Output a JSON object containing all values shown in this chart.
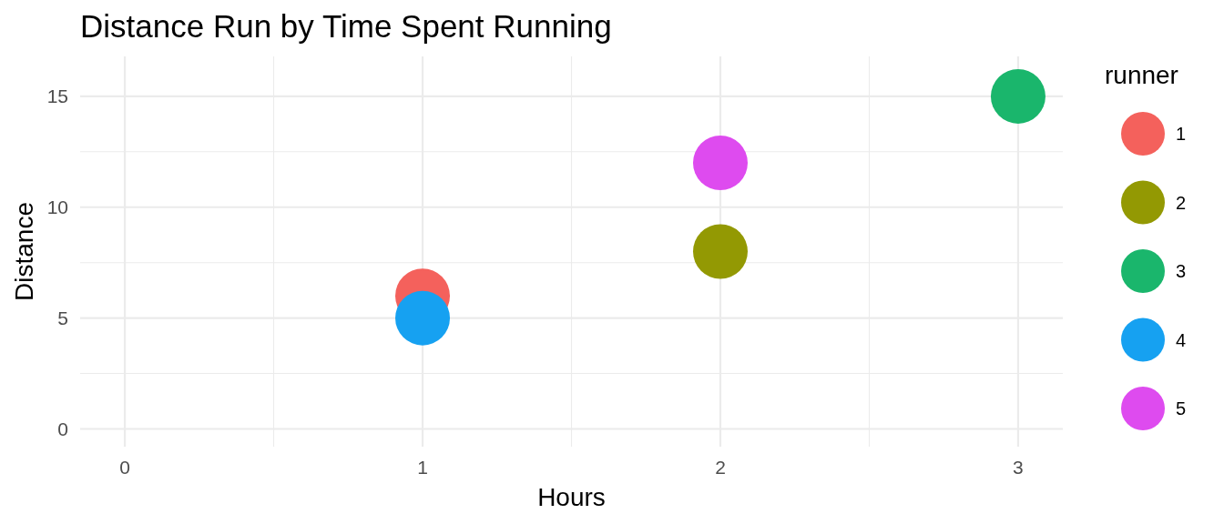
{
  "chart_data": {
    "type": "scatter",
    "title": "Distance Run by Time Spent Running",
    "xlabel": "Hours",
    "ylabel": "Distance",
    "legend_title": "runner",
    "legend": "right",
    "marker": "circle",
    "grid": true,
    "xlim": [
      -0.15,
      3.15
    ],
    "xticks": [
      0,
      {
        "value": 0.5,
        "label": null
      },
      1,
      {
        "value": 1.5,
        "label": null
      },
      2,
      {
        "value": 2.5,
        "label": null
      },
      3
    ],
    "ylim": [
      -0.8,
      16.8
    ],
    "yticks": [
      0,
      {
        "value": 2.5,
        "label": null
      },
      5,
      {
        "value": 7.5,
        "label": null
      },
      10,
      {
        "value": 12.5,
        "label": null
      },
      15
    ],
    "series": [
      {
        "name": "1",
        "color": "#f4615c",
        "x": [
          1
        ],
        "values": [
          6
        ]
      },
      {
        "name": "2",
        "color": "#939903",
        "x": [
          2
        ],
        "values": [
          8
        ]
      },
      {
        "name": "3",
        "color": "#1ab66c",
        "x": [
          3
        ],
        "values": [
          15
        ]
      },
      {
        "name": "4",
        "color": "#16a1f1",
        "x": [
          1
        ],
        "values": [
          5
        ]
      },
      {
        "name": "5",
        "color": "#de4bef",
        "x": [
          2
        ],
        "values": [
          12
        ]
      }
    ]
  }
}
